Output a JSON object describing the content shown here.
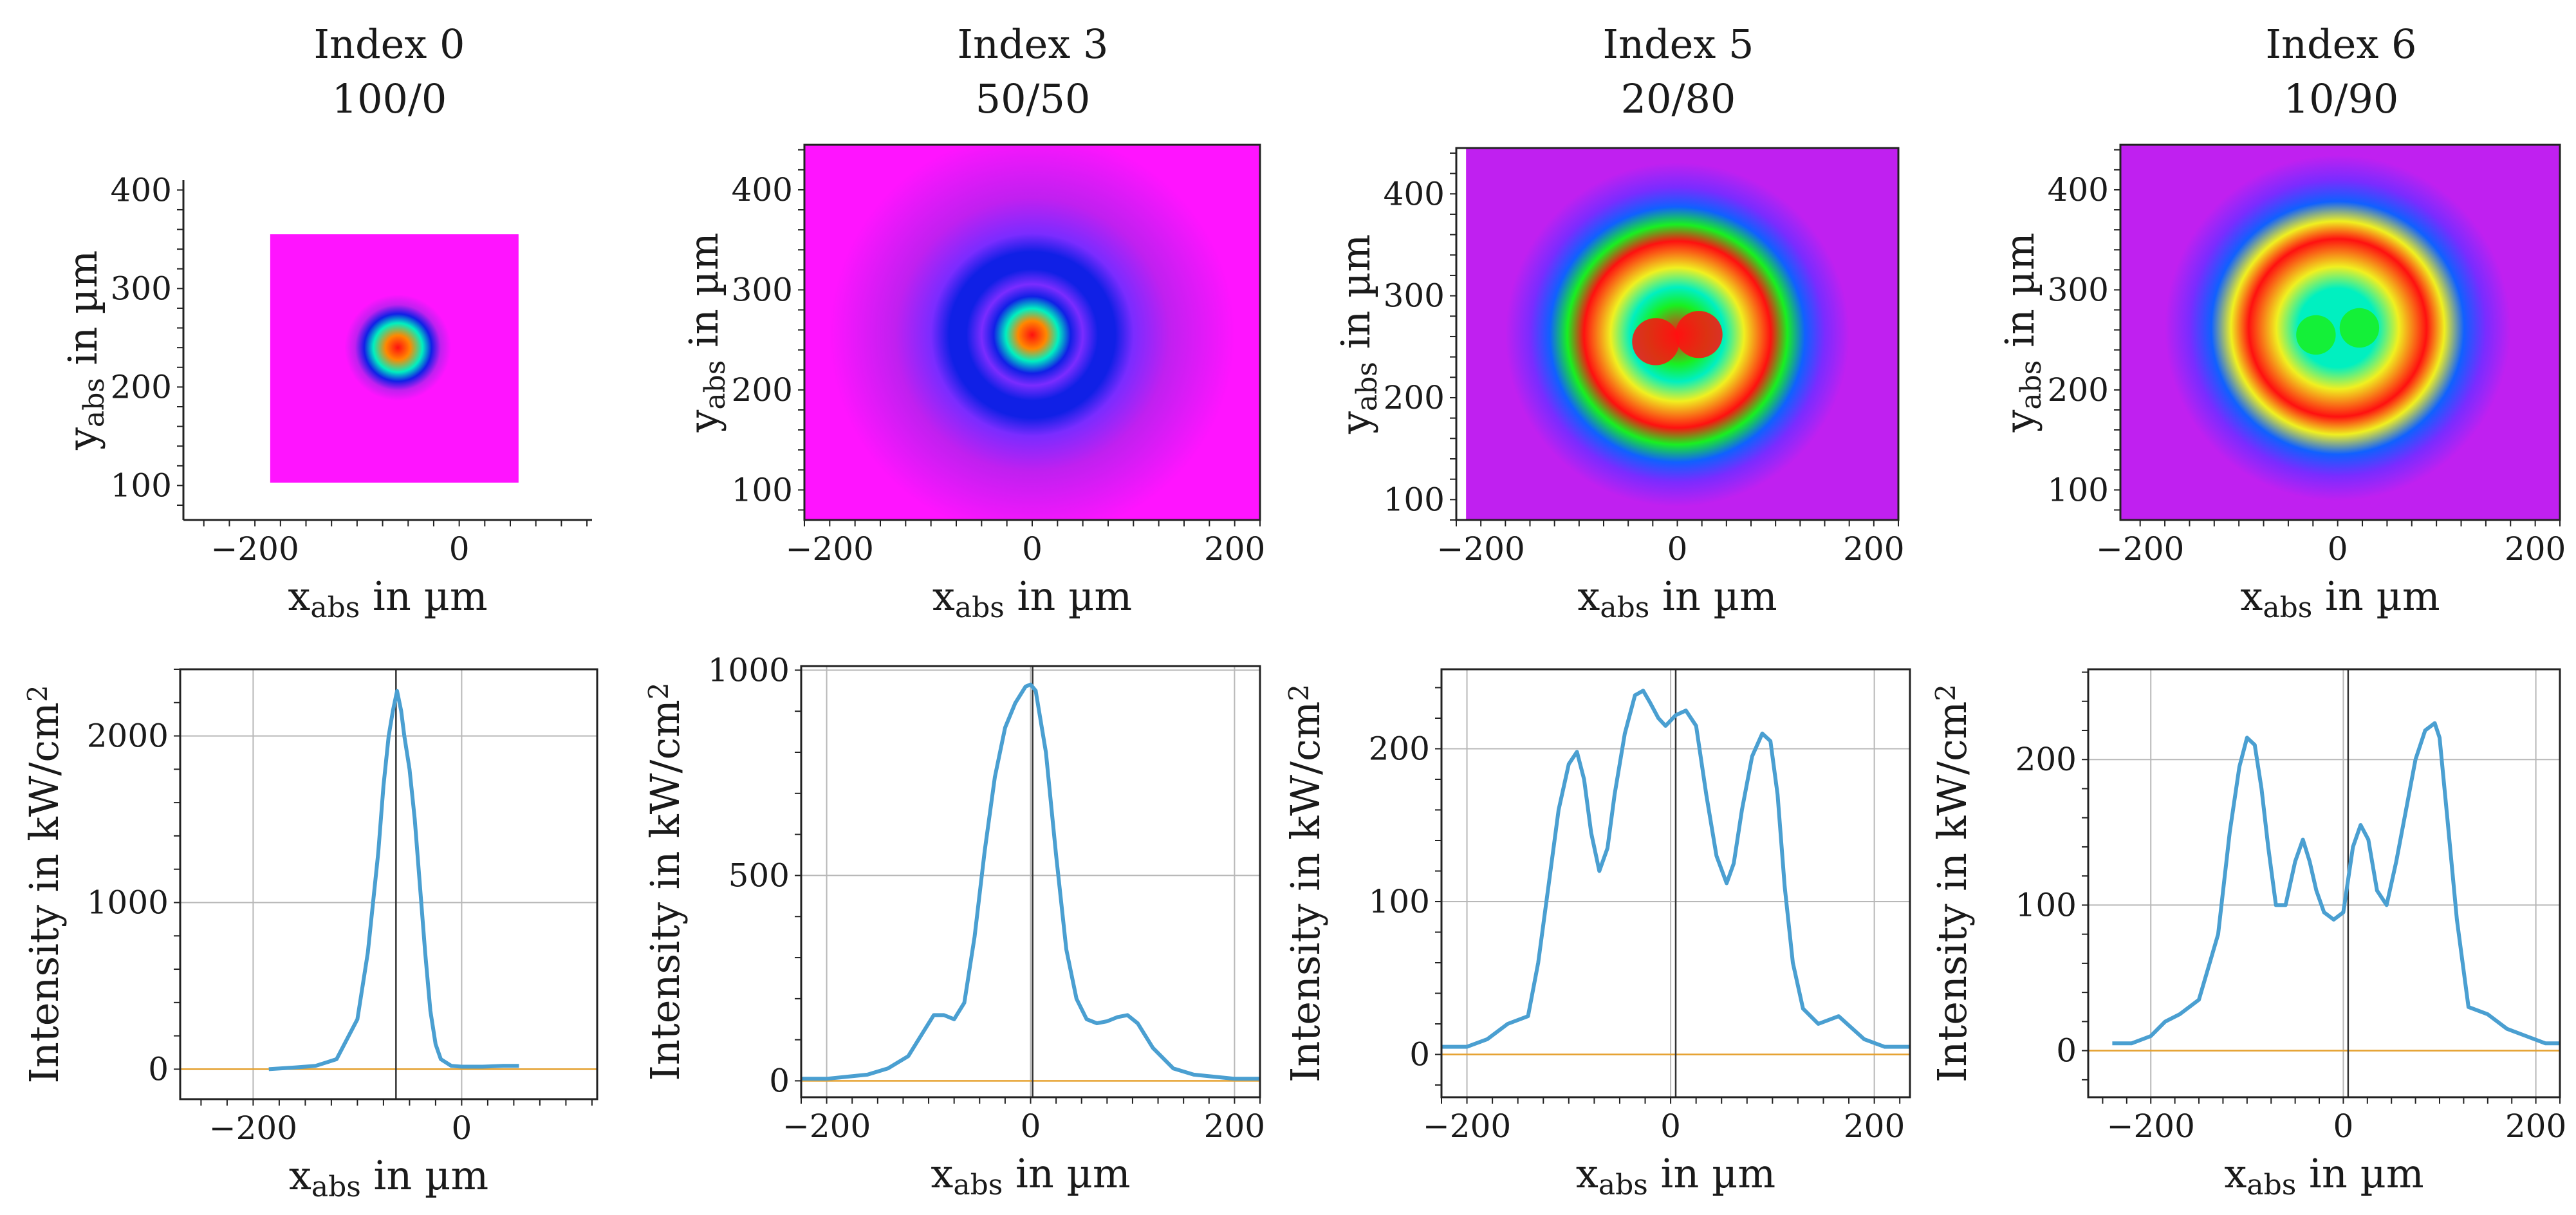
{
  "colors": {
    "curve": "#4a9fd1",
    "zero_line": "#e5a12f",
    "colormap": [
      "#ff14ff",
      "#c020f0",
      "#7a2cff",
      "#1020e6",
      "#1060ff",
      "#00c8ff",
      "#00f0c0",
      "#18f020",
      "#f0f020",
      "#ff8800",
      "#ff1010"
    ]
  },
  "chart_data": [
    {
      "type": "heatmap",
      "panel": "Index 0",
      "title": "Index 0",
      "subtitle": "100/0",
      "xlabel": "x",
      "xlabel_sub": "abs",
      "xlabel_rest": " in µm",
      "ylabel": "y",
      "ylabel_sub": "abs",
      "ylabel_rest": " in µm",
      "xlim": [
        -270,
        130
      ],
      "ylim": [
        65,
        410
      ],
      "xticks": [
        "−200",
        "0"
      ],
      "xtick_values": [
        -200,
        0
      ],
      "yticks": [
        "100",
        "200",
        "300",
        "400"
      ],
      "ytick_values": [
        100,
        200,
        300,
        400
      ],
      "image_extent": [
        -185,
        58,
        103,
        355
      ],
      "center": [
        -60,
        240
      ],
      "rings": [
        {
          "r": 0,
          "val": 1.0
        },
        {
          "r": 12,
          "val": 0.85
        },
        {
          "r": 24,
          "val": 0.55
        },
        {
          "r": 33,
          "val": 0.3
        },
        {
          "r": 42,
          "val": 0.12
        },
        {
          "r": 52,
          "val": 0.0
        }
      ]
    },
    {
      "type": "heatmap",
      "panel": "Index 3",
      "title": "Index 3",
      "subtitle": "50/50",
      "xlabel": "x",
      "xlabel_sub": "abs",
      "xlabel_rest": " in µm",
      "ylabel": "y",
      "ylabel_sub": "abs",
      "ylabel_rest": " in µm",
      "xlim": [
        -225,
        225
      ],
      "ylim": [
        70,
        445
      ],
      "xticks": [
        "−200",
        "0",
        "200"
      ],
      "xtick_values": [
        -200,
        0,
        200
      ],
      "yticks": [
        "100",
        "200",
        "300",
        "400"
      ],
      "ytick_values": [
        100,
        200,
        300,
        400
      ],
      "image_extent": [
        -225,
        225,
        70,
        445
      ],
      "center": [
        0,
        255
      ],
      "rings": [
        {
          "r": 0,
          "val": 1.0
        },
        {
          "r": 14,
          "val": 0.85
        },
        {
          "r": 26,
          "val": 0.55
        },
        {
          "r": 38,
          "val": 0.3
        },
        {
          "r": 50,
          "val": 0.2
        },
        {
          "r": 65,
          "val": 0.28
        },
        {
          "r": 82,
          "val": 0.28
        },
        {
          "r": 100,
          "val": 0.2
        },
        {
          "r": 135,
          "val": 0.06
        },
        {
          "r": 200,
          "val": 0.0
        }
      ]
    },
    {
      "type": "heatmap",
      "panel": "Index 5",
      "title": "Index 5",
      "subtitle": "20/80",
      "xlabel": "x",
      "xlabel_sub": "abs",
      "xlabel_rest": " in µm",
      "ylabel": "y",
      "ylabel_sub": "abs",
      "ylabel_rest": " in µm",
      "xlim": [
        -225,
        225
      ],
      "ylim": [
        80,
        445
      ],
      "xticks": [
        "−200",
        "0",
        "200"
      ],
      "xtick_values": [
        -200,
        0,
        200
      ],
      "yticks": [
        "100",
        "200",
        "300",
        "400"
      ],
      "ytick_values": [
        100,
        200,
        300,
        400
      ],
      "image_extent": [
        -215,
        225,
        80,
        445
      ],
      "center": [
        0,
        262
      ],
      "rings": [
        {
          "r": 0,
          "val": 1.0
        },
        {
          "r": 30,
          "val": 0.72
        },
        {
          "r": 48,
          "val": 0.6
        },
        {
          "r": 68,
          "val": 0.82
        },
        {
          "r": 95,
          "val": 0.98
        },
        {
          "r": 112,
          "val": 0.7
        },
        {
          "r": 130,
          "val": 0.35
        },
        {
          "r": 150,
          "val": 0.22
        },
        {
          "r": 175,
          "val": 0.12
        },
        {
          "r": 240,
          "val": 0.06
        }
      ]
    },
    {
      "type": "heatmap",
      "panel": "Index 6",
      "title": "Index 6",
      "subtitle": "10/90",
      "xlabel": "x",
      "xlabel_sub": "abs",
      "xlabel_rest": " in µm",
      "ylabel": "y",
      "ylabel_sub": "abs",
      "ylabel_rest": " in µm",
      "xlim": [
        -220,
        225
      ],
      "ylim": [
        70,
        445
      ],
      "xticks": [
        "−200",
        "0",
        "200"
      ],
      "xtick_values": [
        -200,
        0,
        200
      ],
      "yticks": [
        "100",
        "200",
        "300",
        "400"
      ],
      "ytick_values": [
        100,
        200,
        300,
        400
      ],
      "image_extent": [
        -220,
        225,
        70,
        445
      ],
      "center": [
        0,
        262
      ],
      "rings": [
        {
          "r": 0,
          "val": 0.62
        },
        {
          "r": 40,
          "val": 0.62
        },
        {
          "r": 62,
          "val": 0.82
        },
        {
          "r": 90,
          "val": 0.98
        },
        {
          "r": 108,
          "val": 0.75
        },
        {
          "r": 128,
          "val": 0.4
        },
        {
          "r": 150,
          "val": 0.22
        },
        {
          "r": 175,
          "val": 0.12
        },
        {
          "r": 240,
          "val": 0.06
        }
      ]
    },
    {
      "type": "line",
      "panel": "Index 0",
      "xlabel": "x",
      "xlabel_sub": "abs",
      "xlabel_rest": " in µm",
      "ylabel": "Intensity in kW/cm",
      "ylabel_sup": "2",
      "xlim": [
        -270,
        130
      ],
      "ylim": [
        -180,
        2400
      ],
      "xticks": [
        "−200",
        "0"
      ],
      "xtick_values": [
        -200,
        0
      ],
      "yticks": [
        "0",
        "1000",
        "2000"
      ],
      "ytick_values": [
        0,
        1000,
        2000
      ],
      "vline_x": -63,
      "x": [
        -185,
        -160,
        -140,
        -120,
        -100,
        -90,
        -80,
        -75,
        -70,
        -66,
        -62,
        -58,
        -55,
        -50,
        -45,
        -40,
        -35,
        -30,
        -25,
        -20,
        -10,
        0,
        20,
        40,
        55
      ],
      "y": [
        0,
        10,
        20,
        60,
        300,
        700,
        1300,
        1700,
        2000,
        2150,
        2270,
        2150,
        2000,
        1800,
        1500,
        1100,
        700,
        350,
        150,
        60,
        20,
        15,
        15,
        20,
        20
      ]
    },
    {
      "type": "line",
      "panel": "Index 3",
      "xlabel": "x",
      "xlabel_sub": "abs",
      "xlabel_rest": " in µm",
      "ylabel": "Intensity in kW/cm",
      "ylabel_sup": "2",
      "xlim": [
        -225,
        225
      ],
      "ylim": [
        -40,
        1010
      ],
      "xticks": [
        "−200",
        "0",
        "200"
      ],
      "xtick_values": [
        -200,
        0,
        200
      ],
      "yticks": [
        "0",
        "500",
        "1000"
      ],
      "ytick_values": [
        0,
        500,
        1000
      ],
      "vline_x": 2,
      "x": [
        -225,
        -200,
        -180,
        -160,
        -140,
        -120,
        -105,
        -95,
        -85,
        -75,
        -65,
        -55,
        -45,
        -35,
        -25,
        -15,
        -5,
        0,
        5,
        15,
        25,
        35,
        45,
        55,
        65,
        75,
        85,
        95,
        105,
        120,
        140,
        160,
        180,
        200,
        225
      ],
      "y": [
        5,
        5,
        10,
        15,
        30,
        60,
        120,
        160,
        160,
        150,
        190,
        350,
        560,
        740,
        860,
        920,
        960,
        965,
        950,
        800,
        550,
        320,
        200,
        150,
        140,
        145,
        155,
        160,
        140,
        80,
        30,
        15,
        10,
        5,
        5
      ]
    },
    {
      "type": "line",
      "panel": "Index 5",
      "xlabel": "x",
      "xlabel_sub": "abs",
      "xlabel_rest": " in µm",
      "ylabel": "Intensity in kW/cm",
      "ylabel_sup": "2",
      "xlim": [
        -225,
        235
      ],
      "ylim": [
        -28,
        252
      ],
      "xticks": [
        "−200",
        "0",
        "200"
      ],
      "xtick_values": [
        -200,
        0,
        200
      ],
      "yticks": [
        "0",
        "100",
        "200"
      ],
      "ytick_values": [
        0,
        100,
        200
      ],
      "vline_x": 5,
      "x": [
        -225,
        -200,
        -180,
        -160,
        -140,
        -130,
        -120,
        -110,
        -100,
        -92,
        -85,
        -78,
        -70,
        -62,
        -55,
        -45,
        -35,
        -27,
        -20,
        -12,
        -5,
        5,
        15,
        25,
        35,
        45,
        55,
        62,
        70,
        80,
        90,
        98,
        105,
        112,
        120,
        130,
        145,
        165,
        190,
        210,
        235
      ],
      "y": [
        5,
        5,
        10,
        20,
        25,
        60,
        110,
        160,
        190,
        198,
        180,
        145,
        120,
        135,
        170,
        210,
        235,
        238,
        230,
        220,
        215,
        222,
        225,
        215,
        170,
        130,
        112,
        125,
        160,
        195,
        210,
        205,
        170,
        110,
        60,
        30,
        20,
        25,
        10,
        5,
        5
      ]
    },
    {
      "type": "line",
      "panel": "Index 6",
      "xlabel": "x",
      "xlabel_sub": "abs",
      "xlabel_rest": " in µm",
      "ylabel": "Intensity in kW/cm",
      "ylabel_sup": "2",
      "xlim": [
        -265,
        225
      ],
      "ylim": [
        -32,
        262
      ],
      "xticks": [
        "−200",
        "0",
        "200"
      ],
      "xtick_values": [
        -200,
        0,
        200
      ],
      "yticks": [
        "0",
        "100",
        "200"
      ],
      "ytick_values": [
        0,
        100,
        200
      ],
      "vline_x": 5,
      "x": [
        -240,
        -220,
        -200,
        -185,
        -170,
        -150,
        -130,
        -118,
        -108,
        -100,
        -92,
        -85,
        -78,
        -70,
        -60,
        -50,
        -42,
        -35,
        -28,
        -20,
        -10,
        0,
        10,
        18,
        26,
        35,
        45,
        55,
        65,
        75,
        85,
        95,
        100,
        108,
        118,
        130,
        150,
        170,
        190,
        210,
        225
      ],
      "y": [
        5,
        5,
        10,
        20,
        25,
        35,
        80,
        150,
        195,
        215,
        210,
        180,
        140,
        100,
        100,
        130,
        145,
        130,
        110,
        95,
        90,
        95,
        140,
        155,
        145,
        110,
        100,
        130,
        165,
        200,
        220,
        225,
        215,
        160,
        90,
        30,
        25,
        15,
        10,
        5,
        5
      ]
    }
  ]
}
